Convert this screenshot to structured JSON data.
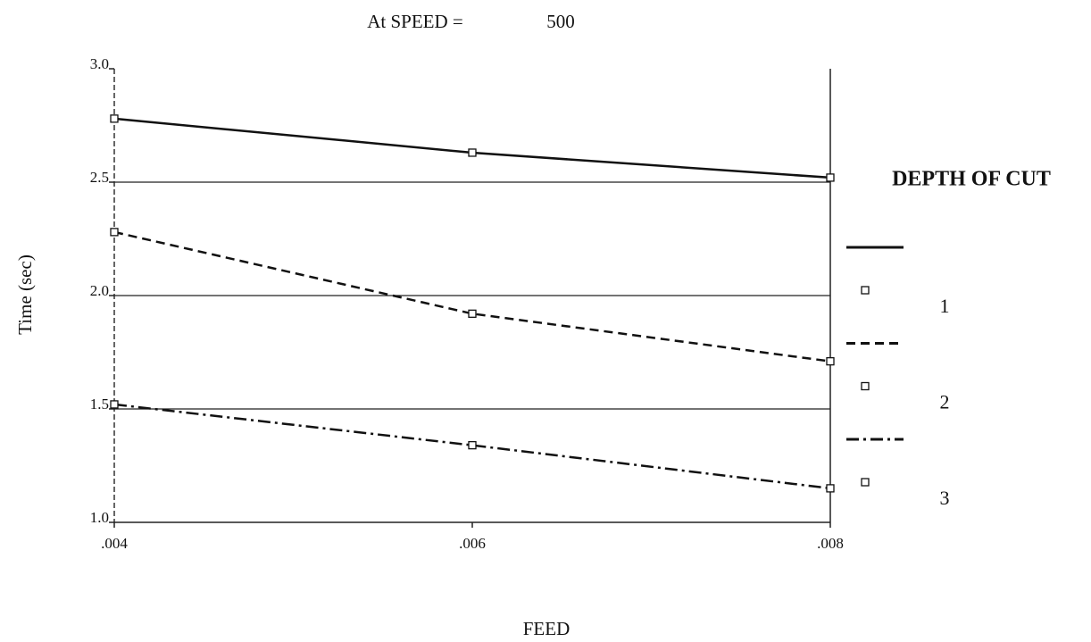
{
  "chart_data": {
    "type": "line",
    "title": "At SPEED =",
    "title_value": "500",
    "x_label": "FEED",
    "y_label": "Time (sec)",
    "legend_title": "DEPTH OF CUT",
    "x": [
      0.004,
      0.006,
      0.008
    ],
    "xlim": [
      0.004,
      0.008
    ],
    "xticks": [
      {
        "value": 0.004,
        "label": ".004"
      },
      {
        "value": 0.006,
        "label": ".006"
      },
      {
        "value": 0.008,
        "label": ".008"
      }
    ],
    "ylim": [
      1.0,
      3.0
    ],
    "yticks": [
      {
        "value": 1.0,
        "label": "1.0"
      },
      1.5,
      {
        "value": 2.0,
        "label": "2.0"
      },
      2.5,
      {
        "value": 3.0,
        "label": "3.0"
      }
    ],
    "grid": true,
    "series": [
      {
        "name": "1",
        "color": "#111111",
        "dash": "solid",
        "values": [
          2.78,
          2.63,
          2.52
        ]
      },
      {
        "name": "2",
        "color": "#111111",
        "dash": "dashed",
        "values": [
          2.28,
          1.92,
          1.71
        ]
      },
      {
        "name": "3",
        "color": "#111111",
        "dash": "dashdot",
        "values": [
          1.52,
          1.34,
          1.15
        ]
      }
    ]
  }
}
